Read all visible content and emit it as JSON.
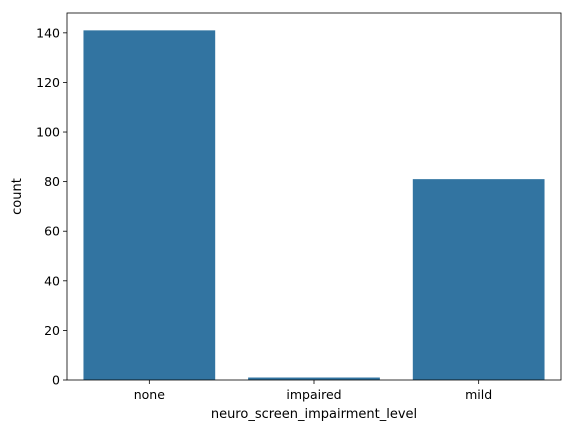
{
  "chart_data": {
    "type": "bar",
    "categories": [
      "none",
      "impaired",
      "mild"
    ],
    "values": [
      141,
      1,
      81
    ],
    "xlabel": "neuro_screen_impairment_level",
    "ylabel": "count",
    "ylim": [
      0,
      148
    ],
    "yticks": [
      0,
      20,
      40,
      60,
      80,
      100,
      120,
      140
    ],
    "grid": false,
    "bar_color": "#3274a1"
  }
}
